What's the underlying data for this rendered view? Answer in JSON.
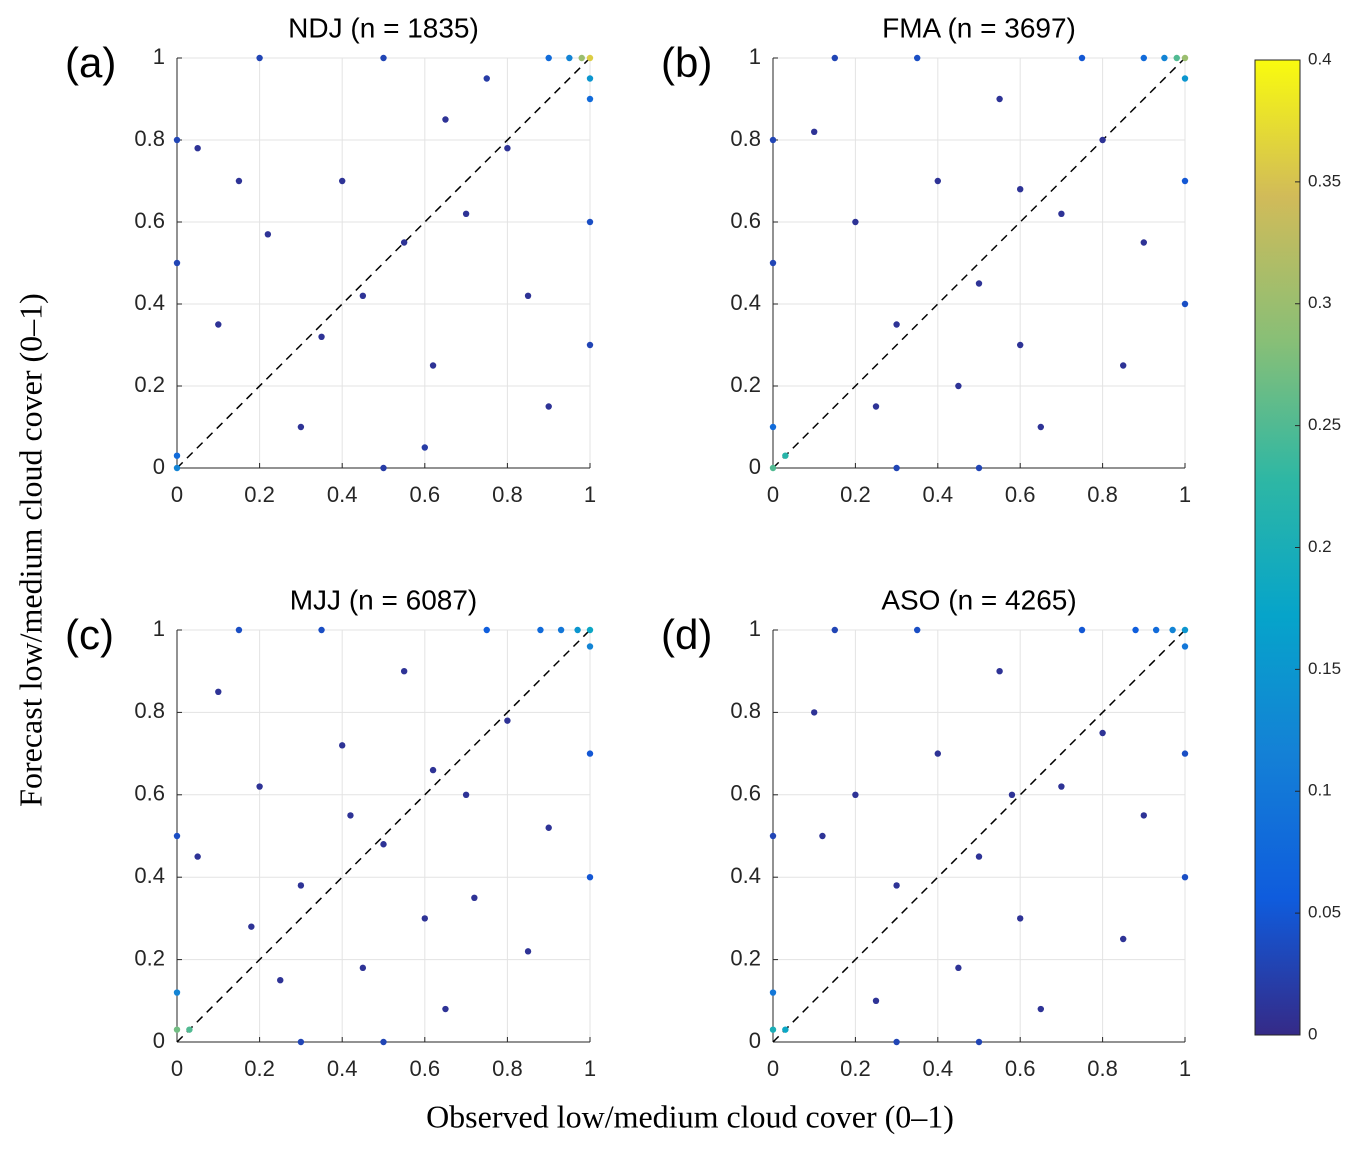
{
  "chart_data": [
    {
      "type": "scatter",
      "panel_label": "(a)",
      "title": "NDJ (n = 1835)",
      "xlim": [
        0,
        1
      ],
      "ylim": [
        0,
        1
      ],
      "xticks": [
        0,
        0.2,
        0.4,
        0.6,
        0.8,
        1
      ],
      "yticks": [
        0,
        0.2,
        0.4,
        0.6,
        0.8,
        1
      ],
      "grid": true,
      "x": [
        1,
        0.98,
        1,
        0.95,
        0.9,
        1,
        0,
        0,
        0.05,
        0.15,
        0.22,
        0.35,
        0.45,
        0.55,
        0.62,
        0.7,
        0.8,
        0.85,
        0.5,
        0.3,
        0.6,
        0.9,
        0.4,
        0,
        0,
        0.2,
        0.5,
        1,
        1,
        0.75,
        0.1,
        0.65
      ],
      "y": [
        1,
        1,
        0.95,
        1,
        1,
        0.9,
        0,
        0.03,
        0.78,
        0.7,
        0.57,
        0.32,
        0.42,
        0.55,
        0.25,
        0.62,
        0.78,
        0.42,
        0,
        0.1,
        0.05,
        0.15,
        0.7,
        0.5,
        0.8,
        1,
        1,
        0.3,
        0.6,
        0.95,
        0.35,
        0.85
      ],
      "c": [
        0.36,
        0.3,
        0.15,
        0.12,
        0.08,
        0.08,
        0.12,
        0.08,
        0.01,
        0.01,
        0.01,
        0.01,
        0.01,
        0.01,
        0.01,
        0.01,
        0.01,
        0.01,
        0.02,
        0.01,
        0.02,
        0.01,
        0.01,
        0.03,
        0.03,
        0.03,
        0.03,
        0.03,
        0.04,
        0.02,
        0.01,
        0.01
      ]
    },
    {
      "type": "scatter",
      "panel_label": "(b)",
      "title": "FMA (n = 3697)",
      "xlim": [
        0,
        1
      ],
      "ylim": [
        0,
        1
      ],
      "xticks": [
        0,
        0.2,
        0.4,
        0.6,
        0.8,
        1
      ],
      "yticks": [
        0,
        0.2,
        0.4,
        0.6,
        0.8,
        1
      ],
      "grid": true,
      "x": [
        1,
        0.98,
        1,
        0.95,
        0.9,
        0,
        0.03,
        0,
        0,
        0.1,
        0.2,
        0.3,
        0.4,
        0.5,
        0.55,
        0.6,
        0.7,
        0.8,
        0.85,
        0.25,
        0.45,
        0.65,
        0.9,
        0.15,
        0.35,
        0.75,
        0.5,
        0.3,
        1,
        1,
        0,
        0.6
      ],
      "y": [
        1,
        1,
        0.95,
        1,
        1,
        0,
        0.03,
        0.1,
        0.5,
        0.82,
        0.6,
        0.35,
        0.7,
        0.45,
        0.9,
        0.3,
        0.62,
        0.8,
        0.25,
        0.15,
        0.2,
        0.1,
        0.55,
        1,
        1,
        1,
        0,
        0,
        0.4,
        0.7,
        0.8,
        0.68
      ],
      "c": [
        0.3,
        0.25,
        0.15,
        0.12,
        0.08,
        0.25,
        0.22,
        0.08,
        0.03,
        0.01,
        0.01,
        0.01,
        0.01,
        0.01,
        0.01,
        0.01,
        0.01,
        0.01,
        0.01,
        0.01,
        0.01,
        0.01,
        0.01,
        0.03,
        0.04,
        0.05,
        0.03,
        0.03,
        0.04,
        0.05,
        0.03,
        0.01
      ]
    },
    {
      "type": "scatter",
      "panel_label": "(c)",
      "title": "MJJ (n = 6087)",
      "xlim": [
        0,
        1
      ],
      "ylim": [
        0,
        1
      ],
      "xticks": [
        0,
        0.2,
        0.4,
        0.6,
        0.8,
        1
      ],
      "yticks": [
        0,
        0.2,
        0.4,
        0.6,
        0.8,
        1
      ],
      "grid": true,
      "x": [
        1,
        0.97,
        1,
        0.93,
        0.88,
        0,
        0.03,
        0,
        0,
        0.1,
        0.2,
        0.3,
        0.4,
        0.5,
        0.55,
        0.6,
        0.7,
        0.8,
        0.85,
        0.25,
        0.45,
        0.65,
        0.9,
        0.15,
        0.35,
        0.75,
        0.5,
        0.3,
        1,
        1,
        0.05,
        0.62,
        0.42,
        0.72,
        0.18
      ],
      "y": [
        1,
        1,
        0.96,
        1,
        1,
        0.03,
        0.03,
        0.12,
        0.5,
        0.85,
        0.62,
        0.38,
        0.72,
        0.48,
        0.9,
        0.3,
        0.6,
        0.78,
        0.22,
        0.15,
        0.18,
        0.08,
        0.52,
        1,
        1,
        1,
        0,
        0,
        0.4,
        0.7,
        0.45,
        0.66,
        0.55,
        0.35,
        0.28
      ],
      "c": [
        0.18,
        0.15,
        0.12,
        0.1,
        0.08,
        0.27,
        0.25,
        0.12,
        0.04,
        0.01,
        0.01,
        0.01,
        0.01,
        0.01,
        0.01,
        0.01,
        0.01,
        0.01,
        0.01,
        0.01,
        0.01,
        0.01,
        0.01,
        0.04,
        0.04,
        0.06,
        0.03,
        0.03,
        0.05,
        0.05,
        0.01,
        0.01,
        0.01,
        0.01,
        0.01
      ]
    },
    {
      "type": "scatter",
      "panel_label": "(d)",
      "title": "ASO (n = 4265)",
      "xlim": [
        0,
        1
      ],
      "ylim": [
        0,
        1
      ],
      "xticks": [
        0,
        0.2,
        0.4,
        0.6,
        0.8,
        1
      ],
      "yticks": [
        0,
        0.2,
        0.4,
        0.6,
        0.8,
        1
      ],
      "grid": true,
      "x": [
        1,
        0.97,
        1,
        0.93,
        0.88,
        0,
        0.03,
        0,
        0,
        0.1,
        0.2,
        0.3,
        0.4,
        0.5,
        0.55,
        0.6,
        0.7,
        0.8,
        0.85,
        0.25,
        0.45,
        0.65,
        0.9,
        0.15,
        0.35,
        0.75,
        0.5,
        0.3,
        1,
        1,
        0.58,
        0.12
      ],
      "y": [
        1,
        1,
        0.96,
        1,
        1,
        0.03,
        0.03,
        0.12,
        0.5,
        0.8,
        0.6,
        0.38,
        0.7,
        0.45,
        0.9,
        0.3,
        0.62,
        0.75,
        0.25,
        0.1,
        0.18,
        0.08,
        0.55,
        1,
        1,
        1,
        0,
        0,
        0.4,
        0.7,
        0.6,
        0.5
      ],
      "c": [
        0.15,
        0.12,
        0.1,
        0.08,
        0.06,
        0.2,
        0.18,
        0.1,
        0.03,
        0.01,
        0.01,
        0.01,
        0.01,
        0.01,
        0.01,
        0.01,
        0.01,
        0.01,
        0.01,
        0.01,
        0.01,
        0.01,
        0.01,
        0.03,
        0.04,
        0.05,
        0.03,
        0.03,
        0.04,
        0.04,
        0.01,
        0.01
      ]
    }
  ],
  "xlabel": "Observed low/medium cloud cover (0–1)",
  "ylabel": "Forecast low/medium cloud cover (0–1)",
  "colorbar": {
    "clim": [
      0,
      0.4
    ],
    "ticks": [
      0,
      0.05,
      0.1,
      0.15,
      0.2,
      0.25,
      0.3,
      0.35,
      0.4
    ]
  }
}
